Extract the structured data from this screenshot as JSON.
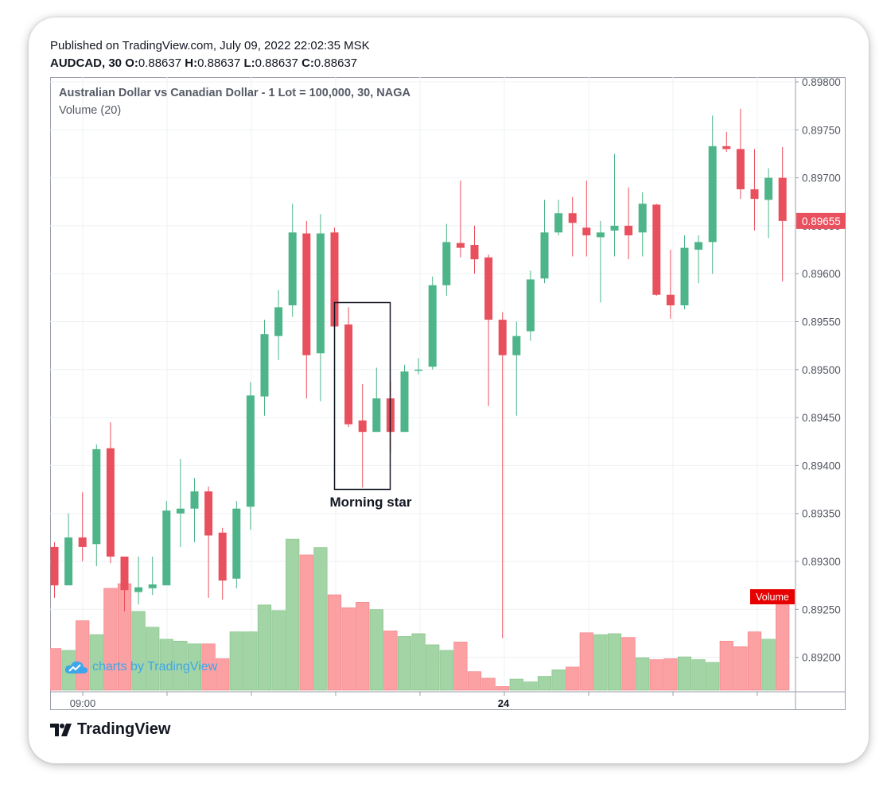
{
  "header": {
    "published": "Published on TradingView.com, July 09, 2022 22:02:35 MSK",
    "symbol": "AUDCAD, 30",
    "o_label": "O:",
    "o_value": "0.88637",
    "h_label": "H:",
    "h_value": "0.88637",
    "l_label": "L:",
    "l_value": "0.88637",
    "c_label": "C:",
    "c_value": "0.88637"
  },
  "legend": {
    "instrument": "Australian Dollar vs Canadian Dollar - 1 Lot = 100,000, 30, NAGA",
    "volume": "Volume (20)"
  },
  "watermark": "charts by TradingView",
  "footer_logo": "TradingView",
  "colors": {
    "up": "#4db589",
    "down": "#e9505e",
    "vol_up": "#a3d4a5",
    "vol_down": "#fba0a3",
    "price_label_bg": "#e9505e",
    "volume_label_bg": "#e60000"
  },
  "chart_data": {
    "type": "candlestick",
    "y_axis": {
      "min": 0.8915,
      "max": 0.8981,
      "ticks": [
        "0.89800",
        "0.89750",
        "0.89700",
        "0.89650",
        "0.89600",
        "0.89550",
        "0.89500",
        "0.89450",
        "0.89400",
        "0.89350",
        "0.89300",
        "0.89250",
        "0.89200"
      ]
    },
    "x_axis_labels": [
      "09:00",
      "24"
    ],
    "last_price_label": "0.89655",
    "last_price": 0.89655,
    "volume_label": "Volume",
    "annotation": "Morning star",
    "candles": [
      {
        "o": 0.89315,
        "h": 0.8932,
        "l": 0.89262,
        "c": 0.89275
      },
      {
        "o": 0.89275,
        "h": 0.8935,
        "l": 0.89275,
        "c": 0.89325
      },
      {
        "o": 0.89325,
        "h": 0.89372,
        "l": 0.893,
        "c": 0.89315
      },
      {
        "o": 0.89318,
        "h": 0.89422,
        "l": 0.89295,
        "c": 0.89417
      },
      {
        "o": 0.89418,
        "h": 0.89445,
        "l": 0.89298,
        "c": 0.89305
      },
      {
        "o": 0.89305,
        "h": 0.89305,
        "l": 0.89248,
        "c": 0.8927
      },
      {
        "o": 0.89268,
        "h": 0.89305,
        "l": 0.89255,
        "c": 0.89273
      },
      {
        "o": 0.89272,
        "h": 0.89305,
        "l": 0.89265,
        "c": 0.89276
      },
      {
        "o": 0.89275,
        "h": 0.89363,
        "l": 0.89275,
        "c": 0.89353
      },
      {
        "o": 0.8935,
        "h": 0.89407,
        "l": 0.89315,
        "c": 0.89355
      },
      {
        "o": 0.89355,
        "h": 0.89387,
        "l": 0.8932,
        "c": 0.89373
      },
      {
        "o": 0.89373,
        "h": 0.89378,
        "l": 0.89262,
        "c": 0.89327
      },
      {
        "o": 0.8933,
        "h": 0.89335,
        "l": 0.8926,
        "c": 0.8928
      },
      {
        "o": 0.89282,
        "h": 0.89363,
        "l": 0.89272,
        "c": 0.89355
      },
      {
        "o": 0.89357,
        "h": 0.89487,
        "l": 0.89333,
        "c": 0.89473
      },
      {
        "o": 0.89472,
        "h": 0.89552,
        "l": 0.89452,
        "c": 0.89537
      },
      {
        "o": 0.89535,
        "h": 0.89583,
        "l": 0.8951,
        "c": 0.89565
      },
      {
        "o": 0.89567,
        "h": 0.89673,
        "l": 0.89555,
        "c": 0.89643
      },
      {
        "o": 0.89642,
        "h": 0.89655,
        "l": 0.8947,
        "c": 0.89515
      },
      {
        "o": 0.89517,
        "h": 0.89662,
        "l": 0.89467,
        "c": 0.89642
      },
      {
        "o": 0.89643,
        "h": 0.89648,
        "l": 0.8954,
        "c": 0.89545
      },
      {
        "o": 0.89547,
        "h": 0.89565,
        "l": 0.8944,
        "c": 0.89443
      },
      {
        "o": 0.89447,
        "h": 0.89485,
        "l": 0.89377,
        "c": 0.89435
      },
      {
        "o": 0.89435,
        "h": 0.89502,
        "l": 0.89435,
        "c": 0.8947
      },
      {
        "o": 0.8947,
        "h": 0.89488,
        "l": 0.89413,
        "c": 0.89435
      },
      {
        "o": 0.89435,
        "h": 0.89505,
        "l": 0.89435,
        "c": 0.89498
      },
      {
        "o": 0.89499,
        "h": 0.89512,
        "l": 0.89495,
        "c": 0.895
      },
      {
        "o": 0.89503,
        "h": 0.89597,
        "l": 0.895,
        "c": 0.89588
      },
      {
        "o": 0.89588,
        "h": 0.89652,
        "l": 0.89577,
        "c": 0.89633
      },
      {
        "o": 0.89632,
        "h": 0.89697,
        "l": 0.89617,
        "c": 0.89627
      },
      {
        "o": 0.8963,
        "h": 0.8965,
        "l": 0.896,
        "c": 0.89615
      },
      {
        "o": 0.89617,
        "h": 0.8962,
        "l": 0.89462,
        "c": 0.89552
      },
      {
        "o": 0.89552,
        "h": 0.8956,
        "l": 0.8922,
        "c": 0.89515
      },
      {
        "o": 0.89515,
        "h": 0.8955,
        "l": 0.89452,
        "c": 0.89535
      },
      {
        "o": 0.8954,
        "h": 0.89603,
        "l": 0.8953,
        "c": 0.89594
      },
      {
        "o": 0.89595,
        "h": 0.89677,
        "l": 0.8959,
        "c": 0.89643
      },
      {
        "o": 0.89643,
        "h": 0.89677,
        "l": 0.8964,
        "c": 0.89663
      },
      {
        "o": 0.89663,
        "h": 0.8968,
        "l": 0.89618,
        "c": 0.89653
      },
      {
        "o": 0.89648,
        "h": 0.89697,
        "l": 0.89618,
        "c": 0.8964
      },
      {
        "o": 0.89638,
        "h": 0.89655,
        "l": 0.8957,
        "c": 0.89643
      },
      {
        "o": 0.89645,
        "h": 0.89725,
        "l": 0.89618,
        "c": 0.8965
      },
      {
        "o": 0.8965,
        "h": 0.8969,
        "l": 0.89615,
        "c": 0.8964
      },
      {
        "o": 0.89643,
        "h": 0.89685,
        "l": 0.89618,
        "c": 0.89673
      },
      {
        "o": 0.89672,
        "h": 0.89673,
        "l": 0.89577,
        "c": 0.89578
      },
      {
        "o": 0.89578,
        "h": 0.89625,
        "l": 0.89553,
        "c": 0.89567
      },
      {
        "o": 0.89567,
        "h": 0.8964,
        "l": 0.89563,
        "c": 0.89627
      },
      {
        "o": 0.89625,
        "h": 0.8964,
        "l": 0.8959,
        "c": 0.89633
      },
      {
        "o": 0.89633,
        "h": 0.89765,
        "l": 0.896,
        "c": 0.89733
      },
      {
        "o": 0.89733,
        "h": 0.89748,
        "l": 0.89727,
        "c": 0.8973
      },
      {
        "o": 0.8973,
        "h": 0.89772,
        "l": 0.89678,
        "c": 0.89688
      },
      {
        "o": 0.89688,
        "h": 0.8973,
        "l": 0.89645,
        "c": 0.89678
      },
      {
        "o": 0.89677,
        "h": 0.8971,
        "l": 0.89637,
        "c": 0.897
      },
      {
        "o": 0.897,
        "h": 0.89732,
        "l": 0.89592,
        "c": 0.89655
      }
    ],
    "volume": [
      45,
      43,
      75,
      60,
      110,
      115,
      85,
      68,
      55,
      53,
      50,
      50,
      34,
      63,
      63,
      92,
      86,
      163,
      146,
      154,
      103,
      89,
      95,
      87,
      64,
      58,
      61,
      49,
      43,
      52,
      20,
      13,
      4,
      12,
      9,
      15,
      22,
      25,
      62,
      60,
      61,
      57,
      35,
      33,
      34,
      36,
      33,
      30,
      53,
      47,
      63,
      55,
      93
    ]
  }
}
